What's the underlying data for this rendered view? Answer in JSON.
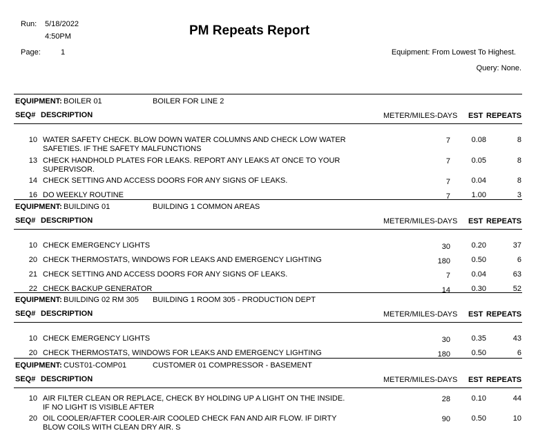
{
  "header": {
    "run_label": "Run:",
    "run_date": "5/18/2022",
    "run_time": "4:50PM",
    "page_label": "Page:",
    "page_number": "1",
    "title": "PM Repeats Report",
    "equipment_order": "Equipment: From Lowest To Highest.",
    "query": "Query: None."
  },
  "columns": {
    "equipment_label": "EQUIPMENT:",
    "seq": "SEQ#",
    "description": "DESCRIPTION",
    "meter": "METER/MILES-DAYS",
    "est": "EST",
    "repeats": "REPEATS"
  },
  "groups": [
    {
      "equipment": "BOILER 01",
      "equipment_desc": "BOILER FOR LINE 2",
      "rows": [
        {
          "seq": "10",
          "description": "WATER SAFETY CHECK. BLOW DOWN WATER COLUMNS AND CHECK LOW WATER SAFETIES. IF THE SAFETY MALFUNCTIONS",
          "meter": "7",
          "est": "0.08",
          "repeats": "8"
        },
        {
          "seq": "13",
          "description": "CHECK HANDHOLD PLATES FOR LEAKS. REPORT ANY LEAKS AT ONCE TO YOUR SUPERVISOR.",
          "meter": "7",
          "est": "0.05",
          "repeats": "8"
        },
        {
          "seq": "14",
          "description": "CHECK SETTING AND ACCESS DOORS FOR ANY SIGNS OF LEAKS.",
          "meter": "7",
          "est": "0.04",
          "repeats": "8"
        },
        {
          "seq": "16",
          "description": "DO WEEKLY ROUTINE",
          "meter": "7",
          "est": "1.00",
          "repeats": "3"
        }
      ]
    },
    {
      "equipment": "BUILDING 01",
      "equipment_desc": "BUILDING 1 COMMON AREAS",
      "rows": [
        {
          "seq": "10",
          "description": "CHECK EMERGENCY LIGHTS",
          "meter": "30",
          "est": "0.20",
          "repeats": "37"
        },
        {
          "seq": "20",
          "description": "CHECK THERMOSTATS, WINDOWS FOR LEAKS AND EMERGENCY LIGHTING",
          "meter": "180",
          "est": "0.50",
          "repeats": "6"
        },
        {
          "seq": "21",
          "description": "CHECK SETTING AND ACCESS DOORS FOR ANY SIGNS OF LEAKS.",
          "meter": "7",
          "est": "0.04",
          "repeats": "63"
        },
        {
          "seq": "22",
          "description": "CHECK BACKUP GENERATOR",
          "meter": "14",
          "est": "0.30",
          "repeats": "52"
        }
      ]
    },
    {
      "equipment": "BUILDING 02 RM 305",
      "equipment_desc": "BUILDING 1 ROOM 305 - PRODUCTION DEPT",
      "rows": [
        {
          "seq": "10",
          "description": "CHECK EMERGENCY LIGHTS",
          "meter": "30",
          "est": "0.35",
          "repeats": "43"
        },
        {
          "seq": "20",
          "description": "CHECK THERMOSTATS, WINDOWS FOR LEAKS AND EMERGENCY LIGHTING",
          "meter": "180",
          "est": "0.50",
          "repeats": "6"
        }
      ]
    },
    {
      "equipment": "CUST01-COMP01",
      "equipment_desc": "CUSTOMER 01 COMPRESSOR - BASEMENT",
      "rows": [
        {
          "seq": "10",
          "description": "AIR FILTER CLEAN OR REPLACE, CHECK BY HOLDING UP A LIGHT ON THE INSIDE. IF NO LIGHT IS VISIBLE AFTER",
          "meter": "28",
          "est": "0.10",
          "repeats": "44"
        },
        {
          "seq": "20",
          "description": "OIL COOLER/AFTER COOLER-AIR COOLED CHECK FAN AND AIR FLOW. IF DIRTY BLOW COILS WITH CLEAN DRY AIR. S",
          "meter": "90",
          "est": "0.50",
          "repeats": "10"
        }
      ]
    }
  ]
}
